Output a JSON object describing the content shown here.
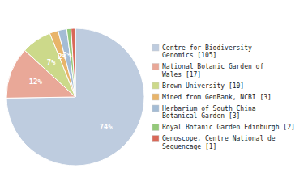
{
  "chart_data": {
    "type": "pie",
    "categories": [
      "Centre for Biodiversity\nGenomics [105]",
      "National Botanic Garden of\nWales [17]",
      "Brown University [10]",
      "Mined from GenBank, NCBI [3]",
      "Herbarium of South China\nBotanical Garden [3]",
      "Royal Botanic Garden Edinburgh [2]",
      "Genoscope, Centre National de\nSequencage [1]"
    ],
    "values": [
      74,
      12,
      7,
      2,
      2,
      1,
      1
    ],
    "value_labels": [
      "74%",
      "12%",
      "7%",
      "2%",
      "2%",
      null,
      null
    ],
    "colors": [
      "#beccdf",
      "#e9a898",
      "#ccd98a",
      "#e8b46a",
      "#a4bcd5",
      "#94c97a",
      "#d96858"
    ],
    "data_labels": true,
    "legend": "right"
  }
}
